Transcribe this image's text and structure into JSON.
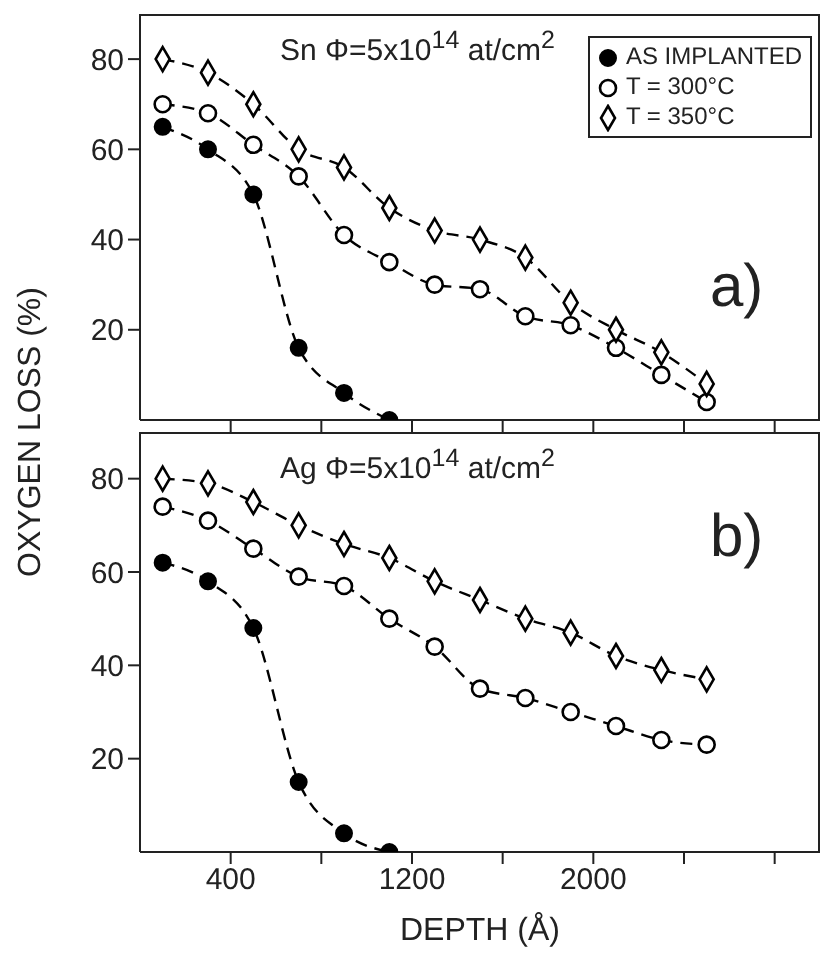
{
  "chart_data": [
    {
      "type": "line",
      "annotations": [
        "Sn Φ=5x10$^{14}$ at/cm$^{2}$",
        "a)"
      ],
      "ylabel": "OXYGEN LOSS (%)",
      "xlim": [
        0,
        3000
      ],
      "ylim": [
        0,
        90
      ],
      "yticks": [
        20,
        40,
        60,
        80
      ],
      "xticks": [
        {
          "value": 400,
          "label": null
        },
        {
          "value": 800,
          "label": null
        },
        {
          "value": 1200,
          "label": null
        },
        {
          "value": 1600,
          "label": null
        },
        {
          "value": 2000,
          "label": null
        },
        {
          "value": 2400,
          "label": null
        },
        {
          "value": 2800,
          "label": null
        }
      ],
      "tick_labels": "y",
      "legend": "top right",
      "line_style": "dashed",
      "grid": false,
      "series": [
        {
          "name": "AS IMPLANTED",
          "color": "#000000",
          "marker": "circle",
          "x": [
            100,
            300,
            500,
            700,
            900,
            1100
          ],
          "values": [
            65,
            60,
            50,
            16,
            6,
            0
          ]
        },
        {
          "name": "T = 300°C",
          "color": "#000000",
          "marker": "circle-open",
          "x": [
            100,
            300,
            500,
            700,
            900,
            1100,
            1300,
            1500,
            1700,
            1900,
            2100,
            2300,
            2500
          ],
          "values": [
            70,
            68,
            61,
            54,
            41,
            35,
            30,
            29,
            23,
            21,
            16,
            10,
            4
          ]
        },
        {
          "name": "T = 350°C",
          "color": "#000000",
          "marker": "diamond",
          "x": [
            100,
            300,
            500,
            700,
            900,
            1100,
            1300,
            1500,
            1700,
            1900,
            2100,
            2300,
            2500
          ],
          "values": [
            80,
            77,
            70,
            60,
            56,
            47,
            42,
            40,
            36,
            26,
            20,
            15,
            8
          ]
        }
      ]
    },
    {
      "type": "line",
      "annotations": [
        "Ag Φ=5x10$^{14}$ at/cm$^{2}$",
        "b)"
      ],
      "xlabel": "DEPTH (Å)",
      "xlim": [
        0,
        3000
      ],
      "ylim": [
        0,
        90
      ],
      "yticks": [
        20,
        40,
        60,
        80
      ],
      "xticks": [
        {
          "value": 400,
          "label": "400"
        },
        {
          "value": 800,
          "label": null
        },
        {
          "value": 1200,
          "label": "1200"
        },
        {
          "value": 1600,
          "label": null
        },
        {
          "value": 2000,
          "label": "2000"
        },
        {
          "value": 2400,
          "label": null
        },
        {
          "value": 2800,
          "label": null
        }
      ],
      "line_style": "dashed",
      "grid": false,
      "series": [
        {
          "color": "#000000",
          "marker": "circle",
          "x": [
            100,
            300,
            500,
            700,
            900,
            1100
          ],
          "values": [
            62,
            58,
            48,
            15,
            4,
            0
          ]
        },
        {
          "color": "#000000",
          "marker": "circle-open",
          "x": [
            100,
            300,
            500,
            700,
            900,
            1100,
            1300,
            1500,
            1700,
            1900,
            2100,
            2300,
            2500
          ],
          "values": [
            74,
            71,
            65,
            59,
            57,
            50,
            44,
            35,
            33,
            30,
            27,
            24,
            23
          ]
        },
        {
          "color": "#000000",
          "marker": "diamond",
          "x": [
            100,
            300,
            500,
            700,
            900,
            1100,
            1300,
            1500,
            1700,
            1900,
            2100,
            2300,
            2500
          ],
          "values": [
            80,
            79,
            75,
            70,
            66,
            63,
            58,
            54,
            50,
            47,
            42,
            39,
            37
          ]
        }
      ]
    }
  ]
}
